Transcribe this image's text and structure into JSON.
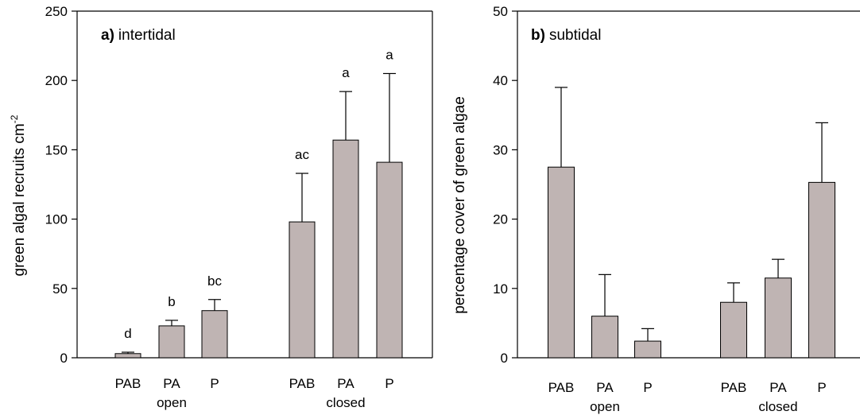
{
  "colors": {
    "bar_fill": "#bfb4b3",
    "axis": "#000000"
  },
  "chart_data": [
    {
      "type": "bar",
      "panel_letter": "a)",
      "panel_name": "intertidal",
      "ylabel": "green algal recruits cm",
      "ylabel_sup": "-2",
      "ylim": [
        0,
        250
      ],
      "yticks": [
        0,
        50,
        100,
        150,
        200,
        250
      ],
      "groups": [
        "open",
        "closed"
      ],
      "categories": [
        "PAB",
        "PA",
        "P",
        "PAB",
        "PA",
        "P"
      ],
      "values": [
        3,
        23,
        34,
        98,
        157,
        141
      ],
      "errors": [
        1,
        4,
        8,
        35,
        35,
        64
      ],
      "significance": [
        "d",
        "b",
        "bc",
        "ac",
        "a",
        "a"
      ]
    },
    {
      "type": "bar",
      "panel_letter": "b)",
      "panel_name": "subtidal",
      "ylabel": "percentage cover of green algae",
      "ylim": [
        0,
        50
      ],
      "yticks": [
        0,
        10,
        20,
        30,
        40,
        50
      ],
      "groups": [
        "open",
        "closed"
      ],
      "categories": [
        "PAB",
        "PA",
        "P",
        "PAB",
        "PA",
        "P"
      ],
      "values": [
        27.5,
        6,
        2.4,
        8,
        11.5,
        25.3
      ],
      "errors": [
        11.5,
        6,
        1.8,
        2.8,
        2.7,
        8.6
      ]
    }
  ]
}
